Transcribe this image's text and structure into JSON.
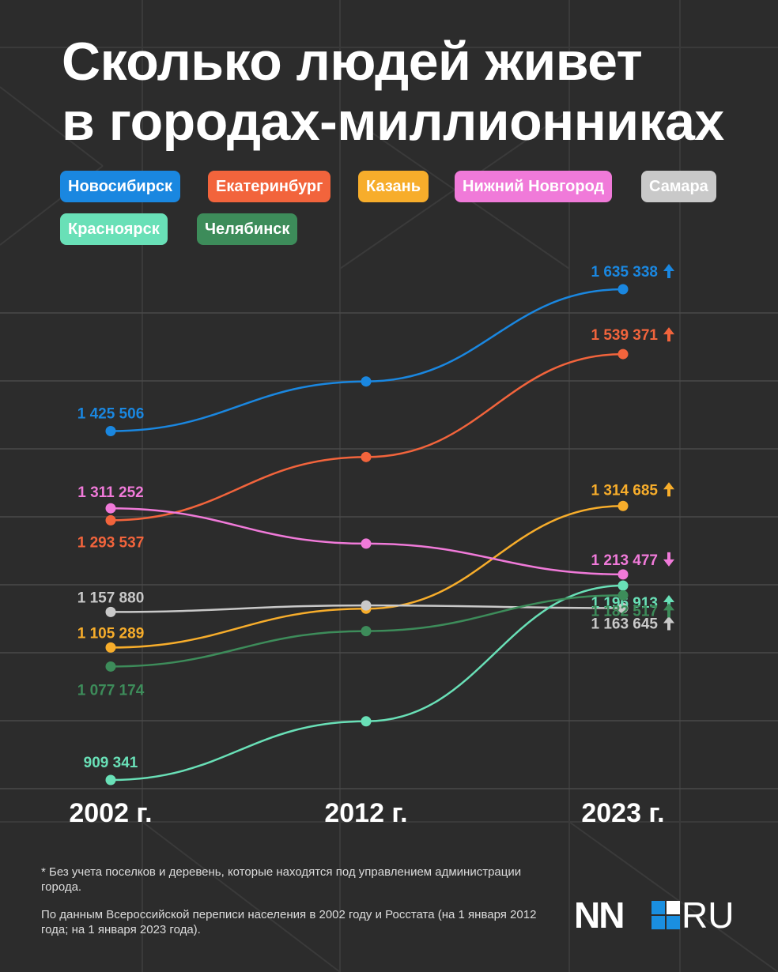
{
  "title_lines": [
    "Сколько людей живет",
    "в городах-миллионниках"
  ],
  "chart_data": {
    "type": "line",
    "title": "Сколько людей живет в городах-миллионниках",
    "x": [
      "2002 г.",
      "2012 г.",
      "2023 г."
    ],
    "grid": true,
    "legend_placement": "top",
    "series": [
      {
        "name": "Новосибирск",
        "color": "#1a87e0",
        "values": [
          1425506,
          1498921,
          1635338
        ],
        "labels": [
          "1 425 506",
          "",
          "1 635 338"
        ],
        "trend": "up"
      },
      {
        "name": "Екатеринбург",
        "color": "#f2643c",
        "values": [
          1293537,
          1387100,
          1539371
        ],
        "labels": [
          "1 293 537",
          "",
          "1 539 371"
        ],
        "trend": "up"
      },
      {
        "name": "Казань",
        "color": "#f7ad2b",
        "values": [
          1105289,
          1162700,
          1314685
        ],
        "labels": [
          "1 105 289",
          "",
          "1 314 685"
        ],
        "trend": "up"
      },
      {
        "name": "Нижний Новгород",
        "color": "#f07ad9",
        "values": [
          1311252,
          1259000,
          1213477
        ],
        "labels": [
          "1 311 252",
          "",
          "1 213 477"
        ],
        "trend": "down"
      },
      {
        "name": "Самара",
        "color": "#c9c9c9",
        "values": [
          1157880,
          1167600,
          1163645
        ],
        "labels": [
          "1 157 880",
          "",
          "1 163 645"
        ],
        "trend": "up"
      },
      {
        "name": "Красноярск",
        "color": "#69e0b7",
        "values": [
          909341,
          996100,
          1196913
        ],
        "labels": [
          "909 341",
          "",
          "1 196 913"
        ],
        "trend": "up"
      },
      {
        "name": "Челябинск",
        "color": "#3d8c5a",
        "values": [
          1077174,
          1129600,
          1182517
        ],
        "labels": [
          "1 077 174",
          "",
          "1 182 517"
        ],
        "trend": "up"
      }
    ]
  },
  "notes": [
    "* Без учета поселков и деревень, которые находятся под управлением администрации города.",
    "По данным Всероссийской переписи населения в 2002 году и Росстата (на 1 января 2012 года; на 1 января 2023 года)."
  ],
  "logo": {
    "left": "NN",
    "right": "RU"
  }
}
